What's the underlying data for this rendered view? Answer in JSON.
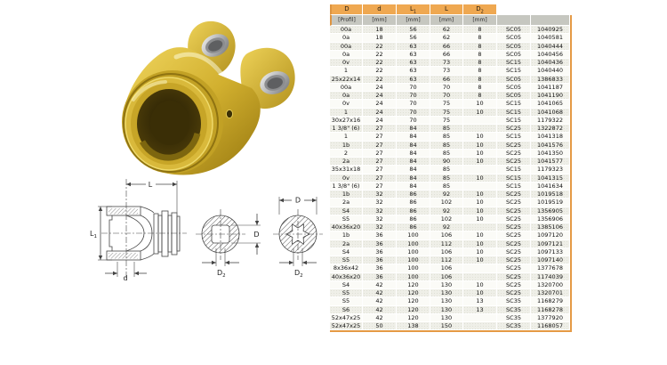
{
  "colors": {
    "header_tan": "#EFA851",
    "header_gray": "#C6C7C0",
    "accent_border": "#E59A45",
    "row_alt": "#EFEFE8",
    "yoke_gold": "#C8A41F"
  },
  "photo": {
    "name": "pto-yoke-product-photo"
  },
  "drawing": {
    "name": "yoke-dimension-drawing",
    "labels": {
      "L": "L",
      "L1_main": "L",
      "L1_sub": "1",
      "d": "d",
      "D": "D",
      "D2_main": "D",
      "D2_sub": "2"
    }
  },
  "table": {
    "columns": [
      {
        "label": "D",
        "sub": "",
        "unit": "[Profil]"
      },
      {
        "label": "d",
        "sub": "",
        "unit": "[mm]"
      },
      {
        "label": "L",
        "sub": "1",
        "unit": "[mm]"
      },
      {
        "label": "L",
        "sub": "",
        "unit": "[mm]"
      },
      {
        "label": "D",
        "sub": "2",
        "unit": "[mm]"
      },
      {
        "label": "",
        "sub": "",
        "unit": ""
      },
      {
        "label": "",
        "sub": "",
        "unit": ""
      }
    ],
    "rows": [
      [
        "00a",
        "18",
        "56",
        "62",
        "8",
        "SC05",
        "1040925"
      ],
      [
        "0a",
        "18",
        "56",
        "62",
        "8",
        "SC05",
        "1040581"
      ],
      [
        "00a",
        "22",
        "63",
        "66",
        "8",
        "SC05",
        "1040444"
      ],
      [
        "0a",
        "22",
        "63",
        "66",
        "8",
        "SC05",
        "1040456"
      ],
      [
        "0v",
        "22",
        "63",
        "73",
        "8",
        "SC15",
        "1040436"
      ],
      [
        "1",
        "22",
        "63",
        "73",
        "8",
        "SC15",
        "1040440"
      ],
      [
        "25x22x14",
        "22",
        "63",
        "66",
        "8",
        "SC05",
        "1386833"
      ],
      [
        "00a",
        "24",
        "70",
        "70",
        "8",
        "SC05",
        "1041187"
      ],
      [
        "0a",
        "24",
        "70",
        "70",
        "8",
        "SC05",
        "1041190"
      ],
      [
        "0v",
        "24",
        "70",
        "75",
        "10",
        "SC15",
        "1041065"
      ],
      [
        "1",
        "24",
        "70",
        "75",
        "10",
        "SC15",
        "1041068"
      ],
      [
        "30x27x16",
        "24",
        "70",
        "75",
        "",
        "SC15",
        "1179322"
      ],
      [
        "1 3/8\" (6)",
        "27",
        "84",
        "85",
        "",
        "SC25",
        "1322872"
      ],
      [
        "1",
        "27",
        "84",
        "85",
        "10",
        "SC15",
        "1041318"
      ],
      [
        "1b",
        "27",
        "84",
        "85",
        "10",
        "SC25",
        "1041576"
      ],
      [
        "2",
        "27",
        "84",
        "85",
        "10",
        "SC25",
        "1041350"
      ],
      [
        "2a",
        "27",
        "84",
        "90",
        "10",
        "SC25",
        "1041577"
      ],
      [
        "35x31x18",
        "27",
        "84",
        "85",
        "",
        "SC15",
        "1179323"
      ],
      [
        "0v",
        "27",
        "84",
        "85",
        "10",
        "SC15",
        "1041315"
      ],
      [
        "1 3/8\" (6)",
        "27",
        "84",
        "85",
        "",
        "SC15",
        "1041634"
      ],
      [
        "1b",
        "32",
        "86",
        "92",
        "10",
        "SC25",
        "1019518"
      ],
      [
        "2a",
        "32",
        "86",
        "102",
        "10",
        "SC25",
        "1019519"
      ],
      [
        "S4",
        "32",
        "86",
        "92",
        "10",
        "SC25",
        "1356905"
      ],
      [
        "S5",
        "32",
        "86",
        "102",
        "10",
        "SC25",
        "1356906"
      ],
      [
        "40x36x20",
        "32",
        "86",
        "92",
        "",
        "SC25",
        "1385106"
      ],
      [
        "1b",
        "36",
        "100",
        "106",
        "10",
        "SC25",
        "1097120"
      ],
      [
        "2a",
        "36",
        "100",
        "112",
        "10",
        "SC25",
        "1097121"
      ],
      [
        "S4",
        "36",
        "100",
        "106",
        "10",
        "SC25",
        "1097133"
      ],
      [
        "S5",
        "36",
        "100",
        "112",
        "10",
        "SC25",
        "1097140"
      ],
      [
        "8x36x42",
        "36",
        "100",
        "106",
        "",
        "SC25",
        "1377678"
      ],
      [
        "40x36x20",
        "36",
        "100",
        "106",
        "",
        "SC25",
        "1174039"
      ],
      [
        "S4",
        "42",
        "120",
        "130",
        "10",
        "SC25",
        "1320700"
      ],
      [
        "S5",
        "42",
        "120",
        "130",
        "10",
        "SC25",
        "1320701"
      ],
      [
        "S5",
        "42",
        "120",
        "130",
        "13",
        "SC35",
        "1168279"
      ],
      [
        "S6",
        "42",
        "120",
        "130",
        "13",
        "SC35",
        "1168278"
      ],
      [
        "52x47x25",
        "42",
        "120",
        "130",
        "",
        "SC35",
        "1377920"
      ],
      [
        "52x47x25",
        "50",
        "138",
        "150",
        "",
        "SC35",
        "1168057"
      ]
    ]
  }
}
